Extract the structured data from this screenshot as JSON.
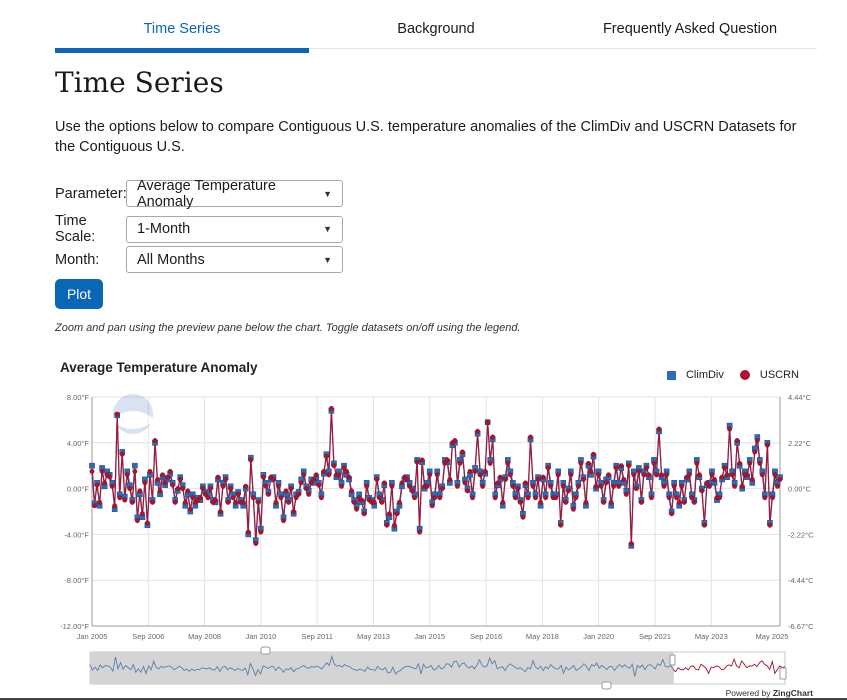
{
  "tabs": [
    {
      "label": "Time Series",
      "active": true
    },
    {
      "label": "Background"
    },
    {
      "label": "Frequently Asked Question"
    }
  ],
  "page_title": "Time Series",
  "intro": "Use the options below to compare Contiguous U.S. temperature anomalies of the ClimDiv and USCRN Datasets for the Contiguous U.S.",
  "form": {
    "parameter": {
      "label": "Parameter:",
      "value": "Average Temperature Anomaly"
    },
    "time_scale": {
      "label": "Time Scale:",
      "value": "1-Month"
    },
    "month": {
      "label": "Month:",
      "value": "All Months"
    },
    "plot_label": "Plot"
  },
  "hint": "Zoom and pan using the preview pane below the chart. Toggle datasets on/off using the legend.",
  "powered_by": {
    "prefix": "Powered by ",
    "brand": "ZingChart"
  },
  "colors": {
    "accent": "#0b66b8",
    "climdiv": "#2c6db6",
    "uscrn": "#b0122b"
  },
  "chart_data": {
    "type": "line",
    "title": "Average Temperature Anomaly",
    "legend": "top-right",
    "grid": true,
    "x_tick_labels": [
      "Jan 2005",
      "Sep 2006",
      "May 2008",
      "Jan 2010",
      "Sep 2011",
      "May 2013",
      "Jan 2015",
      "Sep 2016",
      "May 2018",
      "Jan 2020",
      "Sep 2021",
      "May 2023",
      "May 2025"
    ],
    "y_tick_labels": [
      "8.00°F",
      "4.00°F",
      "0.00°F",
      "-4.00°F",
      "-8.00°F",
      "-12.00°F"
    ],
    "y2_tick_labels": [
      "4.44°C",
      "2.22°C",
      "0.00°C",
      "-2.22°C",
      "-4.44°C",
      "-6.67°C"
    ],
    "ylim": [
      -12,
      8
    ],
    "y2lim": [
      -6.67,
      4.44
    ],
    "xlim": [
      "2005-01",
      "2025-05"
    ],
    "series": [
      {
        "name": "ClimDiv",
        "marker": "square",
        "values": [
          2.0,
          -1.3,
          0.5,
          -1.5,
          1.8,
          0.2,
          1.5,
          1.2,
          0.5,
          -1.8,
          6.4,
          -0.5,
          3.2,
          -0.7,
          1.5,
          0.3,
          -1.0,
          2.0,
          -2.5,
          -0.5,
          -2.5,
          0.8,
          -3.2,
          1.2,
          -1.0,
          4.0,
          0.5,
          -0.5,
          1.0,
          0.3,
          0.8,
          1.3,
          0.5,
          -1.0,
          -0.2,
          1.0,
          0.3,
          -1.5,
          -0.5,
          -2.0,
          -0.5,
          -1.5,
          -0.8,
          -1.0,
          0.2,
          -0.3,
          -0.5,
          0.2,
          -1.0,
          -1.2,
          0.8,
          -2.2,
          0.5,
          1.0,
          -1.0,
          0.2,
          -0.5,
          -1.5,
          -0.3,
          -1.0,
          -1.5,
          0.0,
          -4.0,
          2.7,
          -0.5,
          -4.5,
          -1.0,
          -3.5,
          1.2,
          0.5,
          -0.3,
          0.8,
          1.0,
          -1.5,
          0.5,
          -0.5,
          -2.5,
          -0.5,
          -1.0,
          0.2,
          -2.2,
          -0.5,
          -0.3,
          0.8,
          1.5,
          0.2,
          -0.2,
          0.8,
          0.5,
          1.0,
          0.5,
          -0.5,
          1.3,
          3.0,
          1.5,
          6.8,
          2.2,
          1.0,
          1.5,
          0.5,
          2.0,
          1.2,
          0.8,
          -0.5,
          -1.0,
          -1.5,
          -0.5,
          -1.2,
          -2.0,
          0.5,
          -0.8,
          -1.0,
          -1.5,
          1.0,
          -0.5,
          -1.0,
          0.3,
          -3.0,
          -2.5,
          0.5,
          -3.5,
          -2.0,
          -1.5,
          0.2,
          0.8,
          1.0,
          0.5,
          0.0,
          -0.5,
          2.5,
          -3.5,
          2.3,
          0.0,
          0.5,
          1.5,
          -1.2,
          -0.5,
          1.5,
          -0.5,
          0.2,
          2.5,
          2.3,
          0.5,
          3.8,
          4.0,
          0.5,
          2.5,
          3.0,
          0.8,
          0.0,
          1.2,
          -0.5,
          1.8,
          4.8,
          1.5,
          0.5,
          1.3,
          5.8,
          2.5,
          4.3,
          -0.5,
          0.3,
          0.8,
          -1.5,
          1.0,
          2.5,
          1.5,
          0.5,
          -0.5,
          0.2,
          -1.0,
          -2.2,
          0.3,
          -0.5,
          4.3,
          0.5,
          -0.5,
          1.0,
          -1.5,
          0.8,
          -0.5,
          2.0,
          0.5,
          -0.5,
          -0.5,
          1.5,
          -3.0,
          0.5,
          -1.0,
          0.0,
          1.5,
          -1.5,
          -0.5,
          0.5,
          2.5,
          1.0,
          -1.5,
          2.0,
          1.2,
          2.8,
          0.0,
          1.5,
          0.5,
          -1.0,
          0.8,
          1.0,
          -1.5,
          0.5,
          2.0,
          0.5,
          1.8,
          0.5,
          -0.2,
          2.2,
          -5.0,
          1.5,
          0.2,
          1.8,
          -1.0,
          1.5,
          2.0,
          1.0,
          -0.5,
          2.5,
          1.5,
          5.0,
          1.0,
          0.5,
          1.5,
          -0.5,
          -2.0,
          0.5,
          -0.5,
          -1.5,
          0.5,
          -1.0,
          0.8,
          1.5,
          -0.5,
          -1.0,
          2.5,
          1.0,
          0.0,
          -3.0,
          0.3,
          0.5,
          1.5,
          0.5,
          -1.0,
          -0.5,
          0.8,
          2.0,
          1.0,
          5.5,
          1.5,
          0.5,
          4.0,
          2.0,
          0.0,
          1.5,
          1.0,
          2.5,
          0.5,
          3.5,
          4.5,
          2.5,
          1.5,
          -0.5,
          4.0,
          -3.0,
          -0.5,
          1.5,
          0.5,
          1.0
        ]
      },
      {
        "name": "USCRN",
        "marker": "circle",
        "values": [
          1.5,
          -1.5,
          0.3,
          -1.2,
          1.5,
          0.5,
          1.2,
          1.0,
          0.2,
          -1.5,
          6.5,
          -0.8,
          3.0,
          -1.0,
          1.2,
          0.0,
          -1.2,
          1.5,
          -2.8,
          -0.2,
          -2.2,
          0.5,
          -3.0,
          1.5,
          -1.2,
          4.2,
          0.8,
          -0.2,
          1.2,
          0.5,
          1.0,
          1.5,
          0.3,
          -1.2,
          0.0,
          0.8,
          0.0,
          -1.2,
          -0.2,
          -1.8,
          -0.8,
          -1.2,
          -1.0,
          -0.8,
          0.0,
          -0.5,
          -0.8,
          0.0,
          -1.2,
          -1.0,
          1.0,
          -2.0,
          0.2,
          0.8,
          -1.2,
          0.0,
          -0.8,
          -1.2,
          -0.5,
          -1.2,
          -1.2,
          0.2,
          -3.8,
          2.5,
          -0.8,
          -4.8,
          -1.2,
          -3.8,
          1.0,
          0.2,
          -0.5,
          1.0,
          0.8,
          -1.2,
          0.2,
          -0.8,
          -2.8,
          -0.2,
          -1.2,
          0.0,
          -2.0,
          -0.8,
          -0.5,
          0.5,
          1.2,
          0.0,
          -0.5,
          0.5,
          0.8,
          1.2,
          0.3,
          -0.8,
          1.5,
          2.8,
          1.2,
          7.0,
          2.0,
          1.2,
          1.2,
          0.2,
          1.8,
          1.5,
          1.0,
          -0.2,
          -1.2,
          -1.8,
          -0.8,
          -1.0,
          -2.2,
          0.2,
          -1.0,
          -1.2,
          -1.2,
          0.8,
          -0.8,
          -1.2,
          0.5,
          -3.2,
          -2.2,
          0.2,
          -3.2,
          -2.2,
          -1.2,
          0.5,
          1.0,
          0.8,
          0.2,
          -0.2,
          -0.8,
          2.3,
          -3.8,
          2.5,
          0.2,
          0.2,
          1.2,
          -1.5,
          -0.8,
          1.2,
          -0.8,
          0.0,
          2.2,
          2.5,
          0.8,
          4.0,
          4.2,
          0.2,
          2.2,
          3.2,
          0.5,
          -0.2,
          1.5,
          -0.8,
          1.5,
          5.0,
          1.2,
          0.2,
          1.5,
          5.8,
          2.2,
          4.5,
          -0.8,
          0.5,
          1.0,
          -1.2,
          0.8,
          2.2,
          1.2,
          0.2,
          -0.8,
          0.0,
          -1.2,
          -2.5,
          0.5,
          -0.8,
          4.5,
          0.2,
          -0.8,
          0.8,
          -1.2,
          1.0,
          -0.8,
          1.8,
          0.2,
          -0.8,
          -0.8,
          1.2,
          -3.2,
          0.2,
          -1.2,
          -0.2,
          1.2,
          -1.8,
          -0.8,
          0.2,
          2.2,
          0.8,
          -1.2,
          2.2,
          1.5,
          3.0,
          0.2,
          1.2,
          0.2,
          -1.2,
          0.5,
          1.2,
          -1.2,
          0.2,
          1.8,
          0.2,
          2.0,
          0.8,
          -0.5,
          2.0,
          -4.8,
          1.2,
          0.0,
          1.5,
          -1.2,
          1.2,
          1.8,
          1.2,
          -0.8,
          2.2,
          1.2,
          5.2,
          1.2,
          0.2,
          1.2,
          -0.8,
          -2.2,
          0.2,
          -0.8,
          -1.2,
          0.2,
          -1.2,
          1.0,
          1.2,
          -0.8,
          -1.2,
          2.2,
          1.2,
          -0.2,
          -3.2,
          0.5,
          0.2,
          1.2,
          0.8,
          -0.8,
          -0.8,
          1.0,
          1.8,
          1.2,
          5.2,
          1.2,
          0.2,
          4.2,
          2.2,
          0.2,
          1.2,
          1.2,
          2.2,
          0.8,
          3.2,
          4.2,
          2.2,
          1.2,
          -0.8,
          3.8,
          -3.2,
          -0.8,
          1.2,
          0.2,
          0.8
        ]
      }
    ]
  }
}
